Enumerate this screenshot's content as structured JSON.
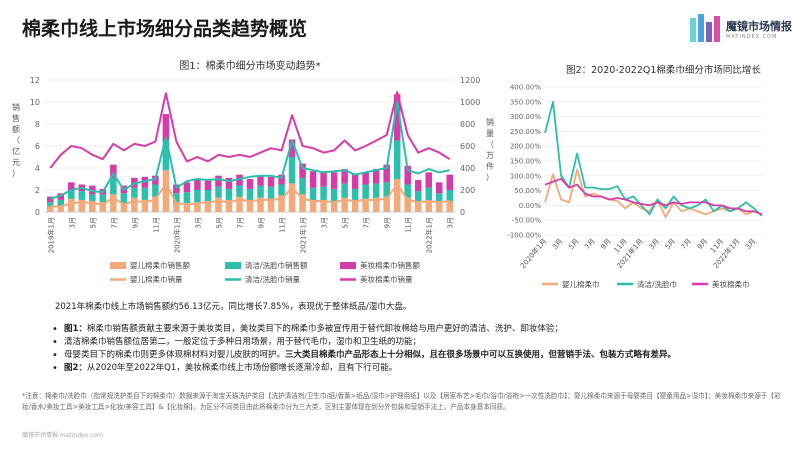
{
  "page_title": "棉柔巾线上市场细分品类趋势概览",
  "logo": {
    "name": "魔镜市场情报",
    "sub": "MATINDEX.COM"
  },
  "colors": {
    "baby": "#f4a97a",
    "clean": "#2bbfac",
    "beauty": "#d43ca7",
    "axis": "#9a9a9a",
    "grid": "#e6e6e6"
  },
  "chart_data": [
    {
      "type": "bar+line",
      "title": "图1：棉柔巾细分市场变动趋势*",
      "ylabel_left": "销售额（亿元）",
      "ylabel_right": "销量（万件）",
      "ylim_left": [
        0,
        12
      ],
      "ylim_right": [
        0,
        1200
      ],
      "yticks_left": [
        "0",
        "2",
        "4",
        "6",
        "8",
        "10",
        "12"
      ],
      "yticks_right": [
        "0",
        "200",
        "400",
        "600",
        "800",
        "1000",
        "1200"
      ],
      "x_tick_labels": [
        "2019年1月",
        "3月",
        "5月",
        "7月",
        "9月",
        "11月",
        "2020年1月",
        "3月",
        "5月",
        "7月",
        "9月",
        "11月",
        "2021年1月",
        "3月",
        "5月",
        "7月",
        "9月",
        "11月",
        "2022年1月",
        "3月"
      ],
      "stacked_bars": [
        {
          "name": "婴儿棉柔巾销售额",
          "color": "#f4a97a",
          "values": [
            0.5,
            0.5,
            1.2,
            1.1,
            1.0,
            0.9,
            1.6,
            0.8,
            1.3,
            1.1,
            1.4,
            3.8,
            0.9,
            0.8,
            0.9,
            1.0,
            1.3,
            1.1,
            1.4,
            1.0,
            1.3,
            1.2,
            1.5,
            2.6,
            1.6,
            1.0,
            1.1,
            0.9,
            1.3,
            1.0,
            1.2,
            1.3,
            1.4,
            3.0,
            1.3,
            0.8,
            1.0,
            0.8,
            1.0
          ]
        },
        {
          "name": "清洁/洗脸巾销售额",
          "color": "#2bbfac",
          "values": [
            0.4,
            0.6,
            0.7,
            0.8,
            0.6,
            0.7,
            1.5,
            0.9,
            0.9,
            1.1,
            1.1,
            2.7,
            0.8,
            1.0,
            1.1,
            1.0,
            1.0,
            1.0,
            1.0,
            1.1,
            1.1,
            1.1,
            1.0,
            2.4,
            1.5,
            1.2,
            1.2,
            1.2,
            1.3,
            1.1,
            1.3,
            1.3,
            1.3,
            3.5,
            1.2,
            1.1,
            1.2,
            0.9,
            1.0
          ]
        },
        {
          "name": "美妆棉柔巾销售额",
          "color": "#d43ca7",
          "values": [
            0.5,
            0.6,
            0.8,
            0.6,
            0.8,
            0.5,
            1.2,
            0.7,
            0.9,
            1.0,
            0.8,
            2.4,
            0.8,
            0.9,
            1.0,
            1.0,
            1.0,
            1.0,
            1.0,
            0.9,
            0.9,
            0.9,
            0.9,
            1.6,
            1.3,
            1.5,
            1.4,
            1.5,
            1.3,
            1.3,
            1.1,
            1.3,
            1.6,
            4.2,
            1.7,
            1.0,
            1.4,
            1.0,
            1.4
          ]
        }
      ],
      "lines": [
        {
          "name": "婴儿棉柔巾销量",
          "color": "#f4a97a",
          "values": [
            50,
            50,
            80,
            90,
            80,
            70,
            130,
            70,
            100,
            90,
            110,
            260,
            80,
            70,
            80,
            90,
            100,
            90,
            110,
            100,
            110,
            110,
            120,
            220,
            120,
            100,
            100,
            90,
            110,
            100,
            110,
            110,
            120,
            250,
            110,
            90,
            100,
            90,
            100
          ]
        },
        {
          "name": "清洁/洗脸巾销量",
          "color": "#2bbfac",
          "values": [
            120,
            150,
            200,
            220,
            190,
            180,
            350,
            200,
            260,
            280,
            300,
            680,
            220,
            280,
            300,
            290,
            300,
            280,
            300,
            320,
            330,
            330,
            310,
            650,
            400,
            380,
            360,
            370,
            380,
            340,
            360,
            380,
            400,
            1000,
            380,
            350,
            390,
            360,
            380
          ]
        },
        {
          "name": "美妆棉柔巾销量",
          "color": "#d43ca7",
          "values": [
            400,
            520,
            600,
            580,
            520,
            480,
            620,
            560,
            620,
            600,
            640,
            1080,
            640,
            460,
            500,
            460,
            520,
            500,
            520,
            500,
            540,
            580,
            560,
            880,
            600,
            580,
            540,
            560,
            650,
            560,
            600,
            650,
            700,
            1090,
            700,
            540,
            580,
            540,
            480
          ]
        }
      ],
      "legend": [
        "婴儿棉柔巾销售额",
        "清洁/洗脸巾销售额",
        "美妆棉柔巾销售额",
        "婴儿棉柔巾销量",
        "清洁/洗脸巾销量",
        "美妆棉柔巾销量"
      ]
    },
    {
      "type": "line",
      "title": "图2：2020-2022Q1棉柔巾细分市场同比增长",
      "ylim": [
        -100,
        400
      ],
      "yticks": [
        "-100.00%",
        "-50.00%",
        "0.00%",
        "50.00%",
        "100.00%",
        "150.00%",
        "200.00%",
        "250.00%",
        "300.00%",
        "350.00%",
        "400.00%"
      ],
      "x_tick_labels": [
        "2020年1月",
        "3月",
        "5月",
        "7月",
        "9月",
        "11月",
        "2021年1月",
        "3月",
        "5月",
        "7月",
        "9月",
        "11月",
        "2022年1月",
        "3月"
      ],
      "series": [
        {
          "name": "婴儿棉柔巾",
          "color": "#f4a97a",
          "values": [
            10,
            105,
            20,
            10,
            120,
            30,
            40,
            30,
            20,
            15,
            -10,
            10,
            -10,
            -20,
            20,
            -40,
            10,
            -20,
            -10,
            -20,
            -30,
            -20,
            -10,
            -20,
            -10,
            -30,
            -20,
            -30
          ]
        },
        {
          "name": "清洁/洗脸巾",
          "color": "#2bbfac",
          "values": [
            245,
            350,
            100,
            60,
            175,
            60,
            60,
            55,
            55,
            65,
            20,
            30,
            0,
            -30,
            20,
            -10,
            30,
            0,
            -10,
            0,
            20,
            -20,
            0,
            -20,
            -10,
            10,
            -10,
            -35
          ]
        },
        {
          "name": "美妆棉柔巾",
          "color": "#d43ca7",
          "values": [
            70,
            80,
            90,
            60,
            70,
            40,
            30,
            30,
            20,
            25,
            20,
            10,
            5,
            0,
            10,
            0,
            10,
            5,
            10,
            10,
            10,
            0,
            0,
            -10,
            -10,
            -20,
            -20,
            -30
          ]
        }
      ],
      "legend": [
        "婴儿棉柔巾",
        "清洁/洗脸巾",
        "美妆棉柔巾"
      ]
    }
  ],
  "summary": "2021年棉柔巾线上市场销售额约56.13亿元，同比增长7.85%，表现优于整体纸品/湿巾大盘。",
  "bullets": [
    {
      "bold_prefix": "图1：",
      "text": "棉柔巾销售额贡献主要来源于美妆类目，美妆类目下的棉柔巾多被宣传用于替代卸妆棉给与用户更好的清洁、洗护、卸妆体验；"
    },
    {
      "bold_prefix": "",
      "text": "清洁棉柔巾销售额位居第二，一般定位于多种日用场景，用于替代毛巾，湿巾和卫生纸的功能；"
    },
    {
      "bold_prefix": "",
      "text": "母婴类目下的棉柔巾则更多体现棉材料对婴儿皮肤的呵护。",
      "bold_suffix": "三大类目棉柔巾产品形态上十分相似，且在很多场景中可以互换使用，但营销手法、包装方式略有差异。"
    },
    {
      "bold_prefix": "图2：",
      "text": "从2020年至2022年Q1，美妆棉柔巾线上市场份额增长逐渐冷却，且有下行可能。"
    }
  ],
  "note": "*注意：棉柔巾/洗脸巾（指常规洗护类目下的棉柔巾）数据来源于淘宝天猫洗护类目【洗护清洁剂/卫生巾/纸/香薰>纸品/湿巾>护理用纸】以及【居家布艺>毛巾/浴巾/浴袍>一次性洗脸巾】；婴儿棉柔巾来源于母婴类目【婴童用品>湿巾】；美妆棉柔巾来源于【彩妆/香水/美妆工具>美妆工具>化妆/美容工具】&【化妆棉】。为区分不同类目由此将棉柔巾分为三大类，区别主要体现在划分外包装和营销手法上，产品本身基本同质。",
  "footer": "魔镜市场情报 matindex.com"
}
